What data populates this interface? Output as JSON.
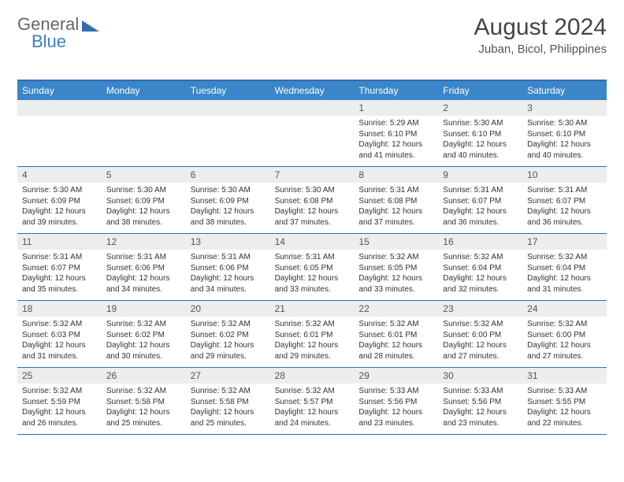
{
  "brand": {
    "part1": "General",
    "part2": "Blue"
  },
  "title": "August 2024",
  "location": "Juban, Bicol, Philippines",
  "colors": {
    "header_bg": "#3a86c8",
    "border": "#2f6fb0",
    "daynum_bg": "#eceded",
    "text": "#333333"
  },
  "weekdays": [
    "Sunday",
    "Monday",
    "Tuesday",
    "Wednesday",
    "Thursday",
    "Friday",
    "Saturday"
  ],
  "weeks": [
    [
      {
        "n": "",
        "lines": []
      },
      {
        "n": "",
        "lines": []
      },
      {
        "n": "",
        "lines": []
      },
      {
        "n": "",
        "lines": []
      },
      {
        "n": "1",
        "lines": [
          "Sunrise: 5:29 AM",
          "Sunset: 6:10 PM",
          "Daylight: 12 hours and 41 minutes."
        ]
      },
      {
        "n": "2",
        "lines": [
          "Sunrise: 5:30 AM",
          "Sunset: 6:10 PM",
          "Daylight: 12 hours and 40 minutes."
        ]
      },
      {
        "n": "3",
        "lines": [
          "Sunrise: 5:30 AM",
          "Sunset: 6:10 PM",
          "Daylight: 12 hours and 40 minutes."
        ]
      }
    ],
    [
      {
        "n": "4",
        "lines": [
          "Sunrise: 5:30 AM",
          "Sunset: 6:09 PM",
          "Daylight: 12 hours and 39 minutes."
        ]
      },
      {
        "n": "5",
        "lines": [
          "Sunrise: 5:30 AM",
          "Sunset: 6:09 PM",
          "Daylight: 12 hours and 38 minutes."
        ]
      },
      {
        "n": "6",
        "lines": [
          "Sunrise: 5:30 AM",
          "Sunset: 6:09 PM",
          "Daylight: 12 hours and 38 minutes."
        ]
      },
      {
        "n": "7",
        "lines": [
          "Sunrise: 5:30 AM",
          "Sunset: 6:08 PM",
          "Daylight: 12 hours and 37 minutes."
        ]
      },
      {
        "n": "8",
        "lines": [
          "Sunrise: 5:31 AM",
          "Sunset: 6:08 PM",
          "Daylight: 12 hours and 37 minutes."
        ]
      },
      {
        "n": "9",
        "lines": [
          "Sunrise: 5:31 AM",
          "Sunset: 6:07 PM",
          "Daylight: 12 hours and 36 minutes."
        ]
      },
      {
        "n": "10",
        "lines": [
          "Sunrise: 5:31 AM",
          "Sunset: 6:07 PM",
          "Daylight: 12 hours and 36 minutes."
        ]
      }
    ],
    [
      {
        "n": "11",
        "lines": [
          "Sunrise: 5:31 AM",
          "Sunset: 6:07 PM",
          "Daylight: 12 hours and 35 minutes."
        ]
      },
      {
        "n": "12",
        "lines": [
          "Sunrise: 5:31 AM",
          "Sunset: 6:06 PM",
          "Daylight: 12 hours and 34 minutes."
        ]
      },
      {
        "n": "13",
        "lines": [
          "Sunrise: 5:31 AM",
          "Sunset: 6:06 PM",
          "Daylight: 12 hours and 34 minutes."
        ]
      },
      {
        "n": "14",
        "lines": [
          "Sunrise: 5:31 AM",
          "Sunset: 6:05 PM",
          "Daylight: 12 hours and 33 minutes."
        ]
      },
      {
        "n": "15",
        "lines": [
          "Sunrise: 5:32 AM",
          "Sunset: 6:05 PM",
          "Daylight: 12 hours and 33 minutes."
        ]
      },
      {
        "n": "16",
        "lines": [
          "Sunrise: 5:32 AM",
          "Sunset: 6:04 PM",
          "Daylight: 12 hours and 32 minutes."
        ]
      },
      {
        "n": "17",
        "lines": [
          "Sunrise: 5:32 AM",
          "Sunset: 6:04 PM",
          "Daylight: 12 hours and 31 minutes."
        ]
      }
    ],
    [
      {
        "n": "18",
        "lines": [
          "Sunrise: 5:32 AM",
          "Sunset: 6:03 PM",
          "Daylight: 12 hours and 31 minutes."
        ]
      },
      {
        "n": "19",
        "lines": [
          "Sunrise: 5:32 AM",
          "Sunset: 6:02 PM",
          "Daylight: 12 hours and 30 minutes."
        ]
      },
      {
        "n": "20",
        "lines": [
          "Sunrise: 5:32 AM",
          "Sunset: 6:02 PM",
          "Daylight: 12 hours and 29 minutes."
        ]
      },
      {
        "n": "21",
        "lines": [
          "Sunrise: 5:32 AM",
          "Sunset: 6:01 PM",
          "Daylight: 12 hours and 29 minutes."
        ]
      },
      {
        "n": "22",
        "lines": [
          "Sunrise: 5:32 AM",
          "Sunset: 6:01 PM",
          "Daylight: 12 hours and 28 minutes."
        ]
      },
      {
        "n": "23",
        "lines": [
          "Sunrise: 5:32 AM",
          "Sunset: 6:00 PM",
          "Daylight: 12 hours and 27 minutes."
        ]
      },
      {
        "n": "24",
        "lines": [
          "Sunrise: 5:32 AM",
          "Sunset: 6:00 PM",
          "Daylight: 12 hours and 27 minutes."
        ]
      }
    ],
    [
      {
        "n": "25",
        "lines": [
          "Sunrise: 5:32 AM",
          "Sunset: 5:59 PM",
          "Daylight: 12 hours and 26 minutes."
        ]
      },
      {
        "n": "26",
        "lines": [
          "Sunrise: 5:32 AM",
          "Sunset: 5:58 PM",
          "Daylight: 12 hours and 25 minutes."
        ]
      },
      {
        "n": "27",
        "lines": [
          "Sunrise: 5:32 AM",
          "Sunset: 5:58 PM",
          "Daylight: 12 hours and 25 minutes."
        ]
      },
      {
        "n": "28",
        "lines": [
          "Sunrise: 5:32 AM",
          "Sunset: 5:57 PM",
          "Daylight: 12 hours and 24 minutes."
        ]
      },
      {
        "n": "29",
        "lines": [
          "Sunrise: 5:33 AM",
          "Sunset: 5:56 PM",
          "Daylight: 12 hours and 23 minutes."
        ]
      },
      {
        "n": "30",
        "lines": [
          "Sunrise: 5:33 AM",
          "Sunset: 5:56 PM",
          "Daylight: 12 hours and 23 minutes."
        ]
      },
      {
        "n": "31",
        "lines": [
          "Sunrise: 5:33 AM",
          "Sunset: 5:55 PM",
          "Daylight: 12 hours and 22 minutes."
        ]
      }
    ]
  ]
}
